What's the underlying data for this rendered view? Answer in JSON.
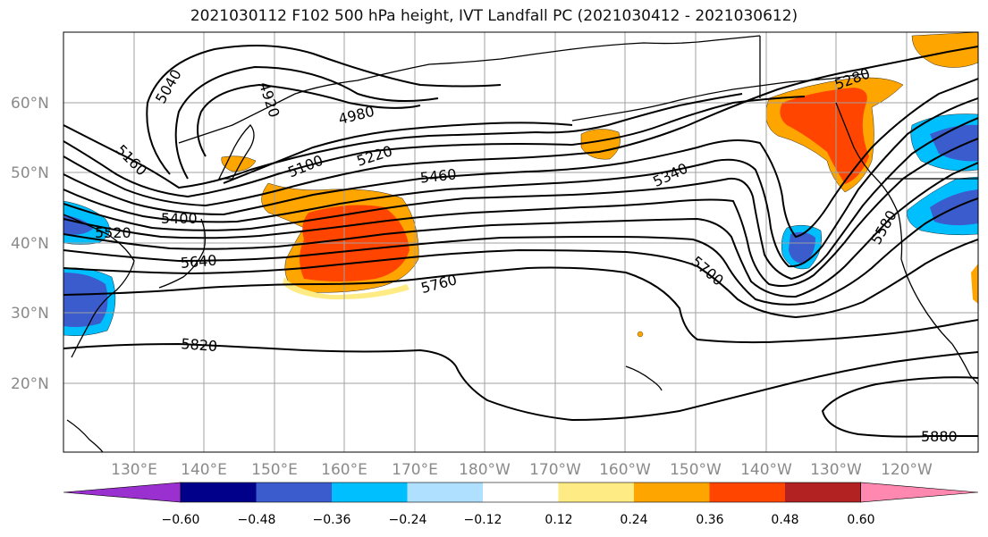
{
  "title": "2021030112 F102 500 hPa height, IVT Landfall PC (2021030412 - 2021030612)",
  "map": {
    "lat_labels": [
      "60°N",
      "50°N",
      "40°N",
      "30°N",
      "20°N"
    ],
    "lon_labels": [
      "130°E",
      "140°E",
      "150°E",
      "160°E",
      "170°E",
      "180°W",
      "170°W",
      "160°W",
      "150°W",
      "140°W",
      "130°W",
      "120°W"
    ],
    "height_contour_labels": [
      "5040",
      "4920",
      "4980",
      "5160",
      "5100",
      "5220",
      "5460",
      "5400",
      "5520",
      "5640",
      "5760",
      "5340",
      "5280",
      "5700",
      "5580",
      "5820",
      "5880"
    ]
  },
  "colorbar": {
    "colors": [
      "#9b30d0",
      "#00008b",
      "#3a5ccc",
      "#00bfff",
      "#b0e0ff",
      "#ffffff",
      "#ffeb84",
      "#ffa500",
      "#ff4500",
      "#b22222",
      "#ff88b0"
    ],
    "tick_labels": [
      "−0.60",
      "−0.48",
      "−0.36",
      "−0.24",
      "−0.12",
      "0.12",
      "0.24",
      "0.36",
      "0.48",
      "0.60"
    ]
  }
}
